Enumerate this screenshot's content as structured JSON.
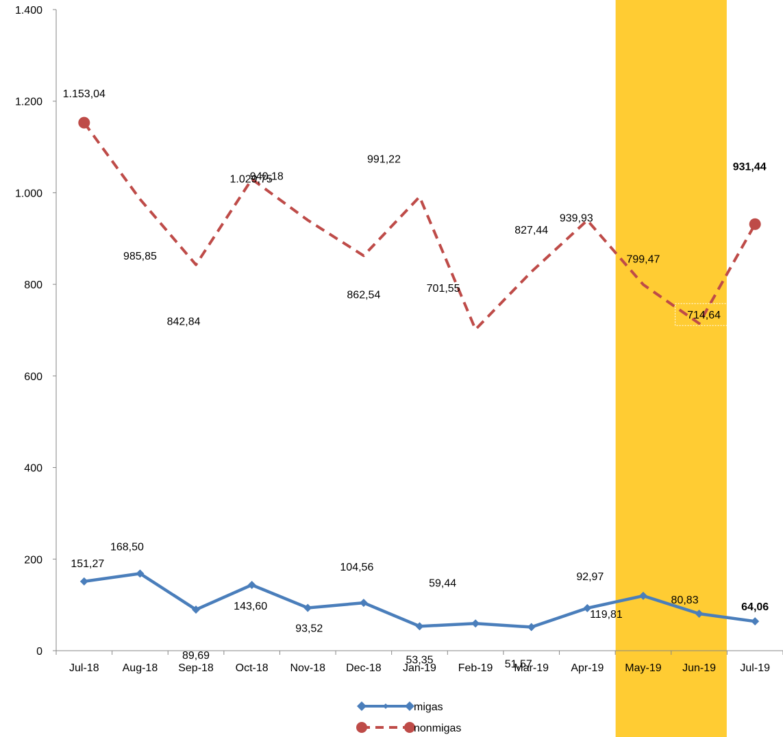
{
  "chart_data": {
    "type": "line",
    "categories": [
      "Jul-18",
      "Aug-18",
      "Sep-18",
      "Oct-18",
      "Nov-18",
      "Dec-18",
      "Jan-19",
      "Feb-19",
      "Mar-19",
      "Apr-19",
      "May-19",
      "Jun-19",
      "Jul-19"
    ],
    "ylim": [
      0,
      1400
    ],
    "yticks": [
      0,
      200,
      400,
      600,
      800,
      1000,
      1200,
      1400
    ],
    "ytick_labels": [
      "0",
      "200",
      "400",
      "600",
      "800",
      "1.000",
      "1.200",
      "1.400"
    ],
    "highlight": {
      "from": "May-19",
      "to": "Jun-19",
      "color": "#FFCC33"
    },
    "grid": false,
    "legend_position": "bottom-center",
    "series": [
      {
        "name": "migas",
        "color": "#4A7EBB",
        "values": [
          151.27,
          168.5,
          89.69,
          143.6,
          93.52,
          104.56,
          53.35,
          59.44,
          51.57,
          92.97,
          119.81,
          80.83,
          64.06
        ],
        "labels": [
          "151,27",
          "168,50",
          "89,69",
          "143,60",
          "93,52",
          "104,56",
          "53,35",
          "59,44",
          "51,57",
          "92,97",
          "119,81",
          "80,83",
          "64,06"
        ]
      },
      {
        "name": "nonmigas",
        "color": "#BE4B48",
        "values": [
          1153.04,
          985.85,
          842.84,
          1029.75,
          940.18,
          862.54,
          991.22,
          701.55,
          827.44,
          939.93,
          799.47,
          714.64,
          931.44
        ],
        "labels": [
          "1.153,04",
          "985,85",
          "842,84",
          "1.029,75",
          "940,18",
          "862,54",
          "991,22",
          "701,55",
          "827,44",
          "939,93",
          "799,47",
          "714,64",
          "931,44"
        ]
      }
    ]
  }
}
